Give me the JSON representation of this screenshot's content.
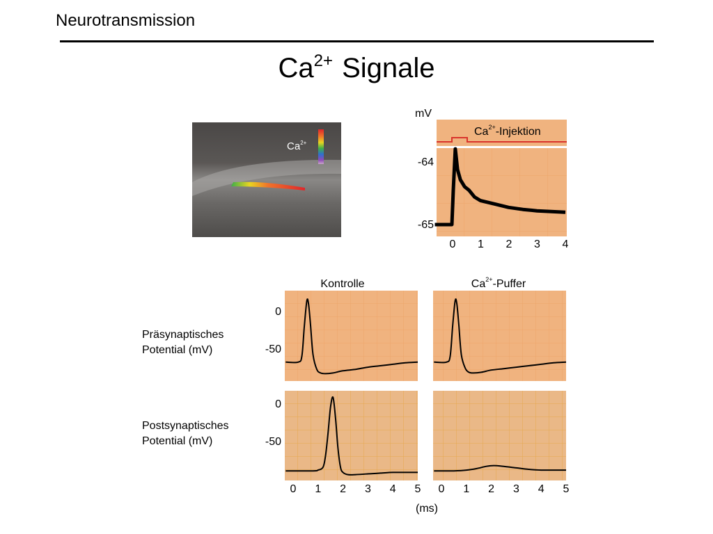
{
  "header": {
    "section_title": "Neurotransmission"
  },
  "slide": {
    "title_base": "Ca",
    "title_sup": "2+",
    "title_rest": " Signale"
  },
  "colors": {
    "panel_orange": "#f0b37f",
    "grid_orange": "#eea46a",
    "panel_tan": "#eab887",
    "grid_gold": "#e5a84e",
    "red_trace": "#d9332b"
  },
  "micrograph": {
    "label_base": "Ca",
    "label_sup": "2+"
  },
  "injection_panel": {
    "unit": "mV",
    "legend_base": "Ca",
    "legend_sup": "2+",
    "legend_rest": "-Injektion",
    "y_ticks": [
      "-64",
      "-65"
    ],
    "x_ticks": [
      "0",
      "1",
      "2",
      "3",
      "4"
    ]
  },
  "comparison": {
    "col_left_title": "Kontrolle",
    "col_right_base": "Ca",
    "col_right_sup": "2+",
    "col_right_rest": "-Puffer",
    "row_top_label_line1": "Präsynaptisches",
    "row_top_label_line2": "Potential (mV)",
    "row_bottom_label_line1": "Postsynaptisches",
    "row_bottom_label_line2": "Potential (mV)",
    "y_ticks": [
      "0",
      "-50"
    ],
    "x_ticks_left": [
      "0",
      "1",
      "2",
      "3",
      "4",
      "5"
    ],
    "x_ticks_right": [
      "0",
      "1",
      "2",
      "3",
      "4",
      "5"
    ],
    "x_unit": "(ms)"
  },
  "chart_data": [
    {
      "type": "line",
      "panel": "injection",
      "ylabel": "mV",
      "xlim": [
        0,
        4
      ],
      "ylim": [
        -65.1,
        -63.8
      ],
      "series": [
        {
          "x": [
            -0.6,
            0,
            0.05,
            0.12,
            0.2,
            0.3,
            0.45,
            0.6,
            0.8,
            1,
            1.5,
            2,
            2.5,
            3,
            3.5,
            4
          ],
          "y": [
            -65,
            -65,
            -64.5,
            -63.9,
            -64.2,
            -64.35,
            -64.45,
            -64.5,
            -64.6,
            -64.65,
            -64.7,
            -64.75,
            -64.78,
            -64.8,
            -64.81,
            -64.82
          ]
        }
      ]
    },
    {
      "type": "line",
      "panel": "praesynaptisch-kontrolle",
      "xlim": [
        0,
        5
      ],
      "ylim": [
        -100,
        40
      ],
      "series": [
        {
          "x": [
            -0.3,
            0.2,
            0.35,
            0.45,
            0.55,
            0.62,
            0.7,
            0.8,
            0.95,
            1.1,
            1.3,
            1.6,
            2,
            2.5,
            3,
            3.5,
            4,
            4.5,
            5
          ],
          "y": [
            -70,
            -70,
            -62,
            -20,
            15,
            10,
            -20,
            -60,
            -80,
            -85,
            -86,
            -85,
            -82,
            -80,
            -77,
            -75,
            -73,
            -71,
            -70
          ]
        }
      ]
    },
    {
      "type": "line",
      "panel": "praesynaptisch-puffer",
      "xlim": [
        0,
        5
      ],
      "ylim": [
        -100,
        40
      ],
      "series": [
        {
          "x": [
            -0.3,
            0.2,
            0.35,
            0.45,
            0.55,
            0.62,
            0.7,
            0.8,
            0.95,
            1.1,
            1.3,
            1.6,
            2,
            2.5,
            3,
            3.5,
            4,
            4.5,
            5
          ],
          "y": [
            -70,
            -70,
            -62,
            -20,
            15,
            10,
            -20,
            -60,
            -78,
            -84,
            -85,
            -84,
            -81,
            -79,
            -77,
            -75,
            -73,
            -71,
            -70
          ]
        }
      ]
    },
    {
      "type": "line",
      "panel": "postsynaptisch-kontrolle",
      "xlim": [
        0,
        5
      ],
      "ylim": [
        -110,
        20
      ],
      "series": [
        {
          "x": [
            -0.3,
            0.8,
            1.0,
            1.2,
            1.3,
            1.4,
            1.5,
            1.6,
            1.7,
            1.8,
            1.9,
            2.0,
            2.2,
            2.5,
            3,
            3.5,
            4,
            4.5,
            5
          ],
          "y": [
            -90,
            -90,
            -89,
            -85,
            -70,
            -40,
            -5,
            8,
            -20,
            -60,
            -85,
            -92,
            -95,
            -95,
            -94,
            -93,
            -92,
            -92,
            -92
          ]
        }
      ]
    },
    {
      "type": "line",
      "panel": "postsynaptisch-puffer",
      "xlim": [
        0,
        5
      ],
      "ylim": [
        -110,
        20
      ],
      "series": [
        {
          "x": [
            -0.3,
            0.5,
            1,
            1.4,
            1.8,
            2.1,
            2.5,
            3,
            3.5,
            4,
            4.5,
            5
          ],
          "y": [
            -90,
            -90,
            -89,
            -87,
            -84,
            -83,
            -84,
            -86,
            -88,
            -89,
            -89,
            -89
          ]
        }
      ]
    }
  ]
}
